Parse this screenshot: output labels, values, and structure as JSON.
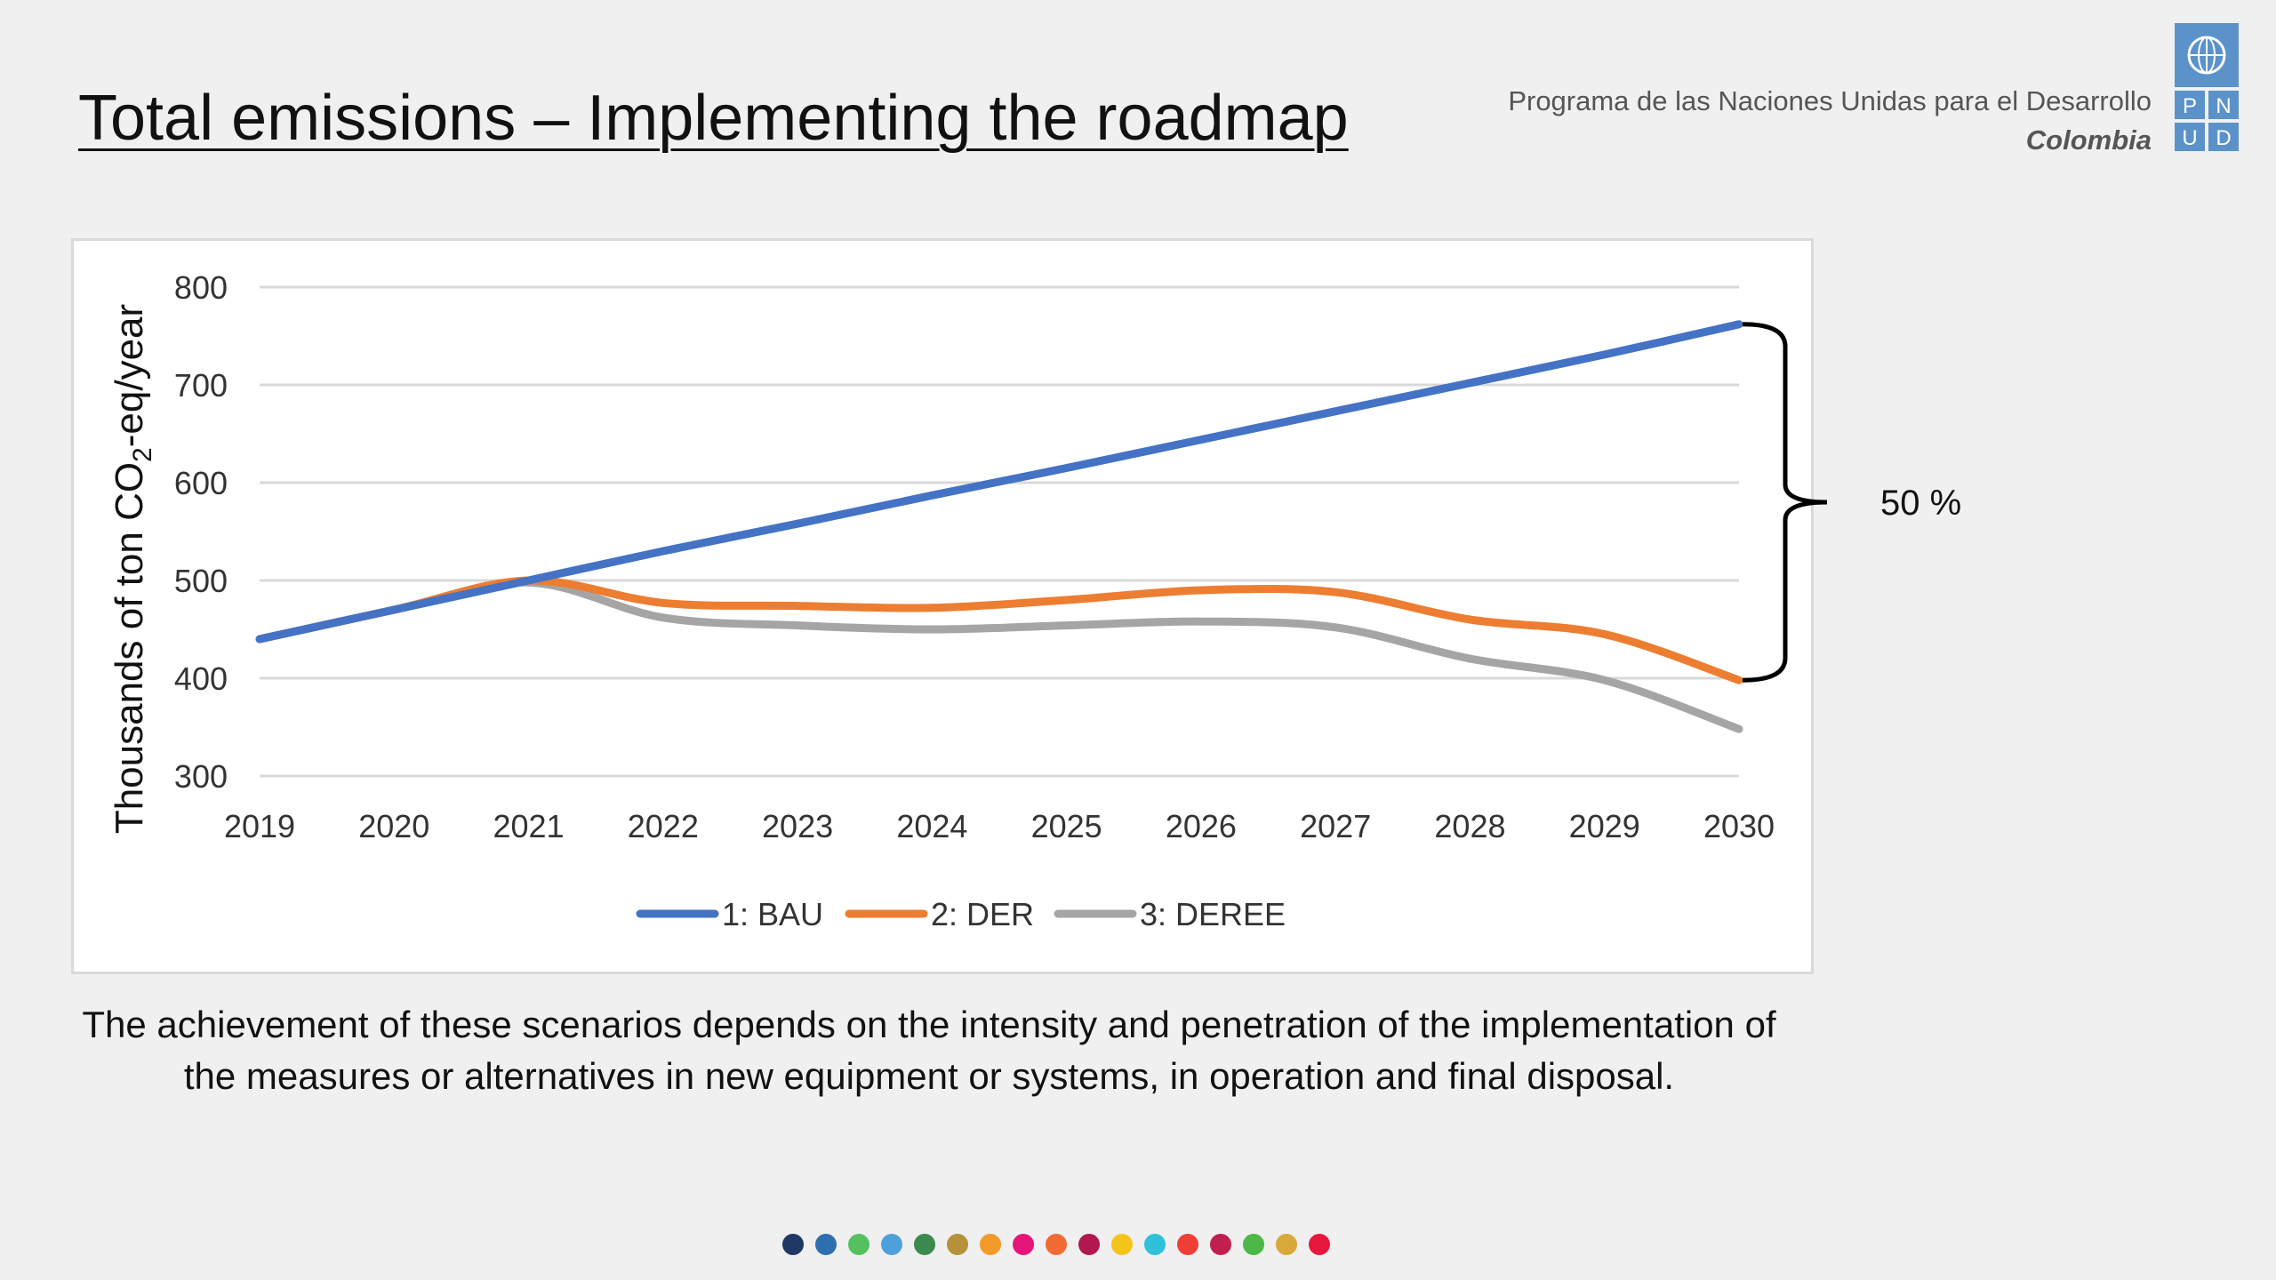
{
  "slide": {
    "title": "Total emissions – Implementing the roadmap",
    "org_name": "Programa de las Naciones Unidas para el Desarrollo",
    "org_country": "Colombia",
    "logo_letters": [
      "P",
      "N",
      "U",
      "D"
    ],
    "caption": "The achievement of these scenarios depends on the intensity and penetration of the implementation of the measures or alternatives in new equipment or systems, in operation and final disposal.",
    "annotation": "50 %",
    "sdg_colors": [
      "#1f3864",
      "#2e6fb0",
      "#55c15e",
      "#4ea1d8",
      "#3b8a4e",
      "#b5913a",
      "#f39a2b",
      "#e6157a",
      "#f26b35",
      "#b0184f",
      "#f5c41a",
      "#2ec1d9",
      "#ef3e36",
      "#c01f4f",
      "#4db848",
      "#d9a83b",
      "#e8183c"
    ],
    "accent_color": "#5b92c9"
  },
  "chart_data": {
    "type": "line",
    "title": "",
    "xlabel": "",
    "ylabel_main": "Thousands of ton CO",
    "ylabel_sub": "2",
    "ylabel_tail": "-eq/year",
    "x": [
      "2019",
      "2020",
      "2021",
      "2022",
      "2023",
      "2024",
      "2025",
      "2026",
      "2027",
      "2028",
      "2029",
      "2030"
    ],
    "yticks": [
      "300",
      "400",
      "500",
      "600",
      "700",
      "800"
    ],
    "ylim": [
      300,
      800
    ],
    "grid": true,
    "legend_position": "bottom",
    "series": [
      {
        "name": "1: BAU",
        "color": "#4472c4",
        "values": [
          440,
          470,
          500,
          530,
          558,
          587,
          615,
          644,
          673,
          702,
          731,
          762
        ]
      },
      {
        "name": "2: DER",
        "color": "#ed7d31",
        "values": [
          440,
          470,
          500,
          477,
          474,
          472,
          480,
          490,
          488,
          460,
          445,
          398
        ]
      },
      {
        "name": "3: DEREE",
        "color": "#a5a5a5",
        "values": [
          440,
          470,
          498,
          462,
          454,
          450,
          454,
          458,
          452,
          420,
          398,
          348
        ]
      }
    ],
    "annotations": [
      {
        "text": "50 %",
        "type": "brace",
        "from_series": "1: BAU",
        "to_series": "2: DER",
        "x": "2030"
      }
    ]
  }
}
